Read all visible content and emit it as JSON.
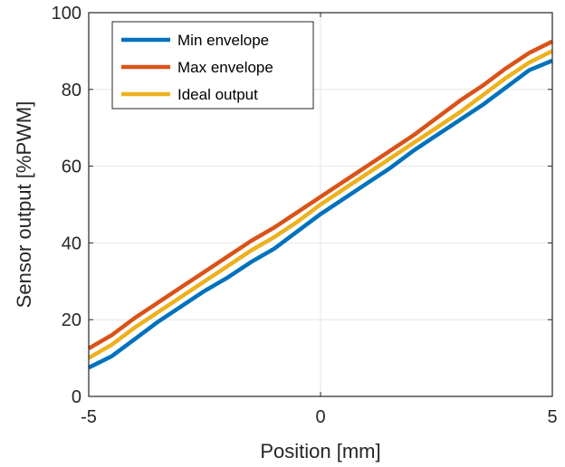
{
  "chart_data": {
    "type": "line",
    "xlabel": "Position [mm]",
    "ylabel": "Sensor output [%PWM]",
    "xlim": [
      -5,
      5
    ],
    "ylim": [
      0,
      100
    ],
    "x_ticks": [
      "-5",
      "0",
      "5"
    ],
    "y_ticks": [
      "0",
      "20",
      "40",
      "60",
      "80",
      "100"
    ],
    "grid": true,
    "legend_position": "top-left",
    "x": [
      -5,
      -4.5,
      -4,
      -3.5,
      -3,
      -2.5,
      -2,
      -1.5,
      -1,
      -0.5,
      0,
      0.5,
      1,
      1.5,
      2,
      2.5,
      3,
      3.5,
      4,
      4.5,
      5
    ],
    "series": [
      {
        "name": "Min envelope",
        "color": "#0072BD",
        "values": [
          7.5,
          10.5,
          15,
          19.5,
          23.5,
          27.5,
          31,
          35,
          38.5,
          43,
          47.5,
          51.5,
          55.5,
          59.5,
          64,
          68,
          72,
          76,
          80.5,
          85,
          87.5
        ]
      },
      {
        "name": "Max envelope",
        "color": "#D95319",
        "values": [
          12.5,
          16,
          20.5,
          24.5,
          28.5,
          32.5,
          36.5,
          40.5,
          44,
          48,
          52,
          56,
          60,
          64,
          68,
          72.5,
          77,
          81,
          85.5,
          89.5,
          92.5
        ]
      },
      {
        "name": "Ideal output",
        "color": "#EDB120",
        "values": [
          10,
          13.5,
          18,
          22,
          26,
          30,
          34,
          38,
          41.5,
          45.5,
          50,
          54,
          58,
          62,
          66,
          70,
          74,
          78.5,
          83,
          87,
          90
        ]
      }
    ]
  }
}
